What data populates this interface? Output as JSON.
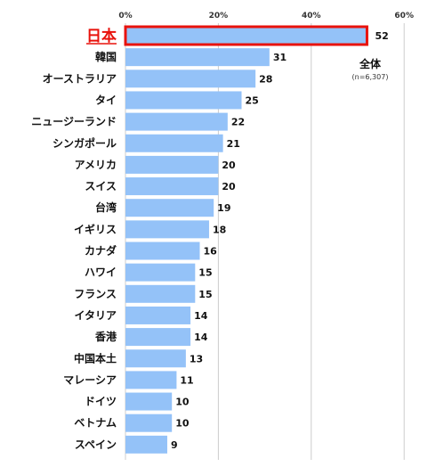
{
  "chart_data": {
    "type": "bar",
    "orientation": "horizontal",
    "categories": [
      "日本",
      "韓国",
      "オーストラリア",
      "タイ",
      "ニュージーランド",
      "シンガポール",
      "アメリカ",
      "スイス",
      "台湾",
      "イギリス",
      "カナダ",
      "ハワイ",
      "フランス",
      "イタリア",
      "香港",
      "中国本土",
      "マレーシア",
      "ドイツ",
      "ベトナム",
      "スペイン"
    ],
    "values": [
      52,
      31,
      28,
      25,
      22,
      21,
      20,
      20,
      19,
      18,
      16,
      15,
      15,
      14,
      14,
      13,
      11,
      10,
      10,
      9
    ],
    "xlim": [
      0,
      60
    ],
    "xticks": [
      0,
      20,
      40,
      60
    ],
    "xtick_labels": [
      "0%",
      "20%",
      "40%",
      "60%"
    ],
    "legend": {
      "title": "全体",
      "note": "(n=6,307)",
      "placement": "top-right"
    },
    "highlight_category": "日本",
    "colors": {
      "bar": "#94c2f8",
      "highlight_border": "#e8120c",
      "grid": "#cccccc",
      "label": "#111111"
    },
    "grid": true
  }
}
